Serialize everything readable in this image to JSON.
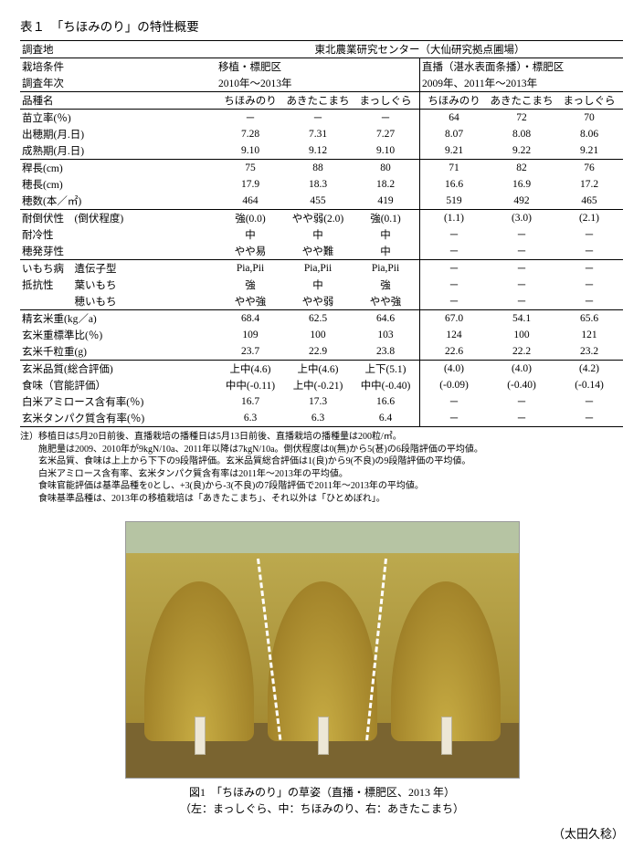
{
  "caption": "表１　「ちほみのり」の特性概要",
  "header": {
    "survey_site_label": "調査地",
    "survey_site_value": "東北農業研究センター（大仙研究拠点圃場）",
    "cond_label": "栽培条件",
    "cond_left": "移植・標肥区",
    "cond_right": "直播（湛水表面条播）・標肥区",
    "year_label": "調査年次",
    "year_left": "2010年～2013年",
    "year_right": "2009年、2011年～2013年",
    "variety_label": "品種名",
    "v1": "ちほみのり",
    "v2": "あきたこまち",
    "v3": "まっしぐら",
    "v4": "ちほみのり",
    "v5": "あきたこまち",
    "v6": "まっしぐら"
  },
  "rows": [
    {
      "l": "苗立率(％)",
      "a": "－",
      "b": "－",
      "c": "－",
      "d": "64",
      "e": "72",
      "f": "70"
    },
    {
      "l": "出穂期(月.日)",
      "a": "7.28",
      "b": "7.31",
      "c": "7.27",
      "d": "8.07",
      "e": "8.08",
      "f": "8.06"
    },
    {
      "l": "成熟期(月.日)",
      "a": "9.10",
      "b": "9.12",
      "c": "9.10",
      "d": "9.21",
      "e": "9.22",
      "f": "9.21"
    }
  ],
  "rows2": [
    {
      "l": "稈長(cm)",
      "a": "75",
      "b": "88",
      "c": "80",
      "d": "71",
      "e": "82",
      "f": "76"
    },
    {
      "l": "穂長(cm)",
      "a": "17.9",
      "b": "18.3",
      "c": "18.2",
      "d": "16.6",
      "e": "16.9",
      "f": "17.2"
    },
    {
      "l": "穂数(本／㎡)",
      "a": "464",
      "b": "455",
      "c": "419",
      "d": "519",
      "e": "492",
      "f": "465"
    }
  ],
  "rows3": [
    {
      "l": "耐倒伏性　(倒伏程度)",
      "a": "強(0.0)",
      "b": "やや弱(2.0)",
      "c": "強(0.1)",
      "d": "(1.1)",
      "e": "(3.0)",
      "f": "(2.1)"
    },
    {
      "l": "耐冷性",
      "a": "中",
      "b": "中",
      "c": "中",
      "d": "－",
      "e": "－",
      "f": "－"
    },
    {
      "l": "穂発芽性",
      "a": "やや易",
      "b": "やや難",
      "c": "中",
      "d": "－",
      "e": "－",
      "f": "－"
    }
  ],
  "rows4": [
    {
      "l": "いもち病　遺伝子型",
      "a": "Pia,Pii",
      "b": "Pia,Pii",
      "c": "Pia,Pii",
      "d": "－",
      "e": "－",
      "f": "－"
    },
    {
      "l": "抵抗性　　葉いもち",
      "a": "強",
      "b": "中",
      "c": "強",
      "d": "－",
      "e": "－",
      "f": "－"
    },
    {
      "l": "　　　　　穂いもち",
      "a": "やや強",
      "b": "やや弱",
      "c": "やや強",
      "d": "－",
      "e": "－",
      "f": "－"
    }
  ],
  "rows5": [
    {
      "l": "精玄米重(kg／a)",
      "a": "68.4",
      "b": "62.5",
      "c": "64.6",
      "d": "67.0",
      "e": "54.1",
      "f": "65.6"
    },
    {
      "l": "玄米重標準比(％)",
      "a": "109",
      "b": "100",
      "c": "103",
      "d": "124",
      "e": "100",
      "f": "121"
    },
    {
      "l": "玄米千粒重(g)",
      "a": "23.7",
      "b": "22.9",
      "c": "23.8",
      "d": "22.6",
      "e": "22.2",
      "f": "23.2"
    }
  ],
  "rows6": [
    {
      "l": "玄米品質(総合評価)",
      "a": "上中(4.6)",
      "b": "上中(4.6)",
      "c": "上下(5.1)",
      "d": "(4.0)",
      "e": "(4.0)",
      "f": "(4.2)"
    },
    {
      "l": "食味（官能評価）",
      "a": "中中(-0.11)",
      "b": "上中(-0.21)",
      "c": "中中(-0.40)",
      "d": "(-0.09)",
      "e": "(-0.40)",
      "f": "(-0.14)"
    },
    {
      "l": "白米アミロース含有率(％)",
      "a": "16.7",
      "b": "17.3",
      "c": "16.6",
      "d": "－",
      "e": "－",
      "f": "－"
    },
    {
      "l": "玄米タンパク質含有率(％)",
      "a": "6.3",
      "b": "6.3",
      "c": "6.4",
      "d": "－",
      "e": "－",
      "f": "－"
    }
  ],
  "notes": "注）移植日は5月20日前後、直播栽培の播種日は5月13日前後、直播栽培の播種量は200粒/㎡。\n　　施肥量は2009、2010年が9kgN/10a、2011年以降は7kgN/10a。倒伏程度は0(無)から5(甚)の6段階評価の平均値。\n　　玄米品質、食味は上上から下下の9段階評価。玄米品質総合評価は1(良)から9(不良)の9段階評価の平均値。\n　　白米アミロース含有率、玄米タンパク質含有率は2011年～2013年の平均値。\n　　食味官能評価は基準品種を0とし、+3(良)から-3(不良)の7段階評価で2011年～2013年の平均値。\n　　食味基準品種は、2013年の移植栽培は「あきたこまち」、それ以外は「ひとめぼれ」。",
  "figcap1": "図1　「ちほみのり」の草姿（直播・標肥区、2013 年）",
  "figcap2": "（左：まっしぐら、中：ちほみのり、右：あきたこまち）",
  "author": "（太田久稔）"
}
